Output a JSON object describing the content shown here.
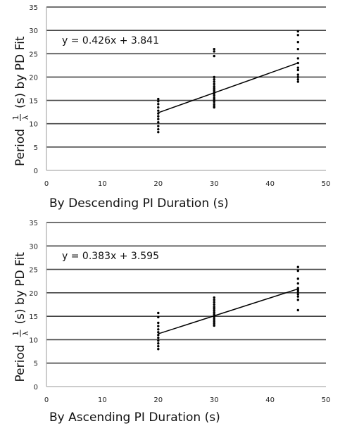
{
  "chart_data": [
    {
      "type": "scatter",
      "xlabel": "By Descending PI Duration (s)",
      "ylabel": {
        "prefix": "Period",
        "frac_num": "1",
        "frac_den": "λ",
        "suffix": "(s) by PD Fit"
      },
      "xlim": [
        0,
        50
      ],
      "ylim": [
        0,
        35
      ],
      "x_ticks": [
        0,
        10,
        20,
        30,
        40,
        50
      ],
      "y_ticks": [
        0,
        5,
        10,
        15,
        20,
        25,
        30,
        35
      ],
      "grid": "horizontal",
      "equation": "y = 0.426x + 3.841",
      "trendline": {
        "slope": 0.426,
        "intercept": 3.841,
        "x_range": [
          20,
          45
        ]
      },
      "points": [
        [
          20,
          8.2
        ],
        [
          20,
          8.8
        ],
        [
          20,
          9.5
        ],
        [
          20,
          10.3
        ],
        [
          20,
          11.0
        ],
        [
          20,
          11.6
        ],
        [
          20,
          12.2
        ],
        [
          20,
          12.8
        ],
        [
          20,
          13.5
        ],
        [
          20,
          14.2
        ],
        [
          20,
          14.8
        ],
        [
          20,
          15.3
        ],
        [
          30,
          13.5
        ],
        [
          30,
          13.8
        ],
        [
          30,
          14.2
        ],
        [
          30,
          14.7
        ],
        [
          30,
          15.1
        ],
        [
          30,
          15.5
        ],
        [
          30,
          16.0
        ],
        [
          30,
          16.4
        ],
        [
          30,
          16.8
        ],
        [
          30,
          17.2
        ],
        [
          30,
          17.6
        ],
        [
          30,
          18.0
        ],
        [
          30,
          18.5
        ],
        [
          30,
          19.0
        ],
        [
          30,
          19.5
        ],
        [
          30,
          20.0
        ],
        [
          30,
          24.5
        ],
        [
          30,
          25.5
        ],
        [
          30,
          26.0
        ],
        [
          45,
          19.0
        ],
        [
          45,
          19.5
        ],
        [
          45,
          20.0
        ],
        [
          45,
          20.5
        ],
        [
          45,
          21.5
        ],
        [
          45,
          22.0
        ],
        [
          45,
          23.0
        ],
        [
          45,
          24.0
        ],
        [
          45,
          26.0
        ],
        [
          45,
          27.5
        ],
        [
          45,
          29.0
        ],
        [
          45,
          29.8
        ]
      ]
    },
    {
      "type": "scatter",
      "xlabel": "By Ascending PI Duration (s)",
      "ylabel": {
        "prefix": "Period",
        "frac_num": "1",
        "frac_den": "λ",
        "suffix": "(s) by PD Fit"
      },
      "xlim": [
        0,
        50
      ],
      "ylim": [
        0,
        35
      ],
      "x_ticks": [
        0,
        10,
        20,
        30,
        40,
        50
      ],
      "y_ticks": [
        0,
        5,
        10,
        15,
        20,
        25,
        30,
        35
      ],
      "grid": "horizontal",
      "equation": "y = 0.383x + 3.595",
      "trendline": {
        "slope": 0.383,
        "intercept": 3.595,
        "x_range": [
          20,
          45
        ]
      },
      "points": [
        [
          20,
          8.0
        ],
        [
          20,
          8.6
        ],
        [
          20,
          9.2
        ],
        [
          20,
          9.8
        ],
        [
          20,
          10.4
        ],
        [
          20,
          11.0
        ],
        [
          20,
          11.6
        ],
        [
          20,
          12.2
        ],
        [
          20,
          12.9
        ],
        [
          20,
          13.6
        ],
        [
          20,
          14.8
        ],
        [
          20,
          15.7
        ],
        [
          30,
          13.0
        ],
        [
          30,
          13.4
        ],
        [
          30,
          13.8
        ],
        [
          30,
          14.2
        ],
        [
          30,
          14.6
        ],
        [
          30,
          15.0
        ],
        [
          30,
          15.4
        ],
        [
          30,
          15.8
        ],
        [
          30,
          16.2
        ],
        [
          30,
          16.6
        ],
        [
          30,
          17.0
        ],
        [
          30,
          17.5
        ],
        [
          30,
          18.0
        ],
        [
          30,
          18.5
        ],
        [
          30,
          19.0
        ],
        [
          45,
          16.3
        ],
        [
          45,
          18.5
        ],
        [
          45,
          19.2
        ],
        [
          45,
          19.7
        ],
        [
          45,
          20.2
        ],
        [
          45,
          20.6
        ],
        [
          45,
          21.0
        ],
        [
          45,
          22.0
        ],
        [
          45,
          23.0
        ],
        [
          45,
          24.7
        ],
        [
          45,
          25.5
        ]
      ]
    }
  ]
}
